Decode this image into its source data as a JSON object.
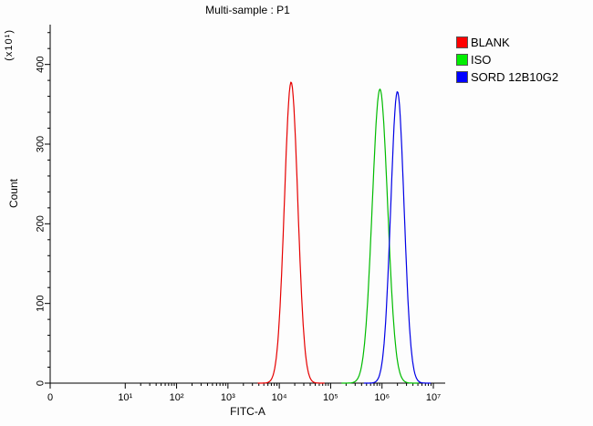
{
  "title": "Multi-sample : P1",
  "axes": {
    "xlabel": "FITC-A",
    "ylabel": "Count",
    "y_unit": "(x10¹)"
  },
  "legend": {
    "items": [
      {
        "label": "BLANK",
        "color": "#ff0000"
      },
      {
        "label": "ISO",
        "color": "#00ee00"
      },
      {
        "label": "SORD 12B10G2",
        "color": "#0000ff"
      }
    ]
  },
  "chart_data": {
    "type": "line",
    "subtype": "flow-cytometry-histogram",
    "title": "Multi-sample : P1",
    "xlabel": "FITC-A",
    "ylabel": "Count",
    "y_unit_multiplier": "(x10¹)",
    "x_scale": "log",
    "x_tick_labels": [
      "0",
      "10¹",
      "10²",
      "10³",
      "10⁴",
      "10⁵",
      "10⁶",
      "10⁷"
    ],
    "y_ticks": [
      0,
      100,
      200,
      300,
      400
    ],
    "y_minor_step": 20,
    "ylim": [
      0,
      450
    ],
    "grid": false,
    "legend_position": "top-right-outside",
    "series": [
      {
        "name": "BLANK",
        "color": "#e60000",
        "peak_x": 17000,
        "peak_x_log10": 4.23,
        "peak_count_x10": 378,
        "sigma_log10": 0.13
      },
      {
        "name": "ISO",
        "color": "#00bb00",
        "peak_x": 900000,
        "peak_x_log10": 5.96,
        "peak_count_x10": 369,
        "sigma_log10": 0.15
      },
      {
        "name": "SORD 12B10G2",
        "color": "#0000e6",
        "peak_x": 2000000,
        "peak_x_log10": 6.3,
        "peak_count_x10": 366,
        "sigma_log10": 0.13
      }
    ]
  }
}
